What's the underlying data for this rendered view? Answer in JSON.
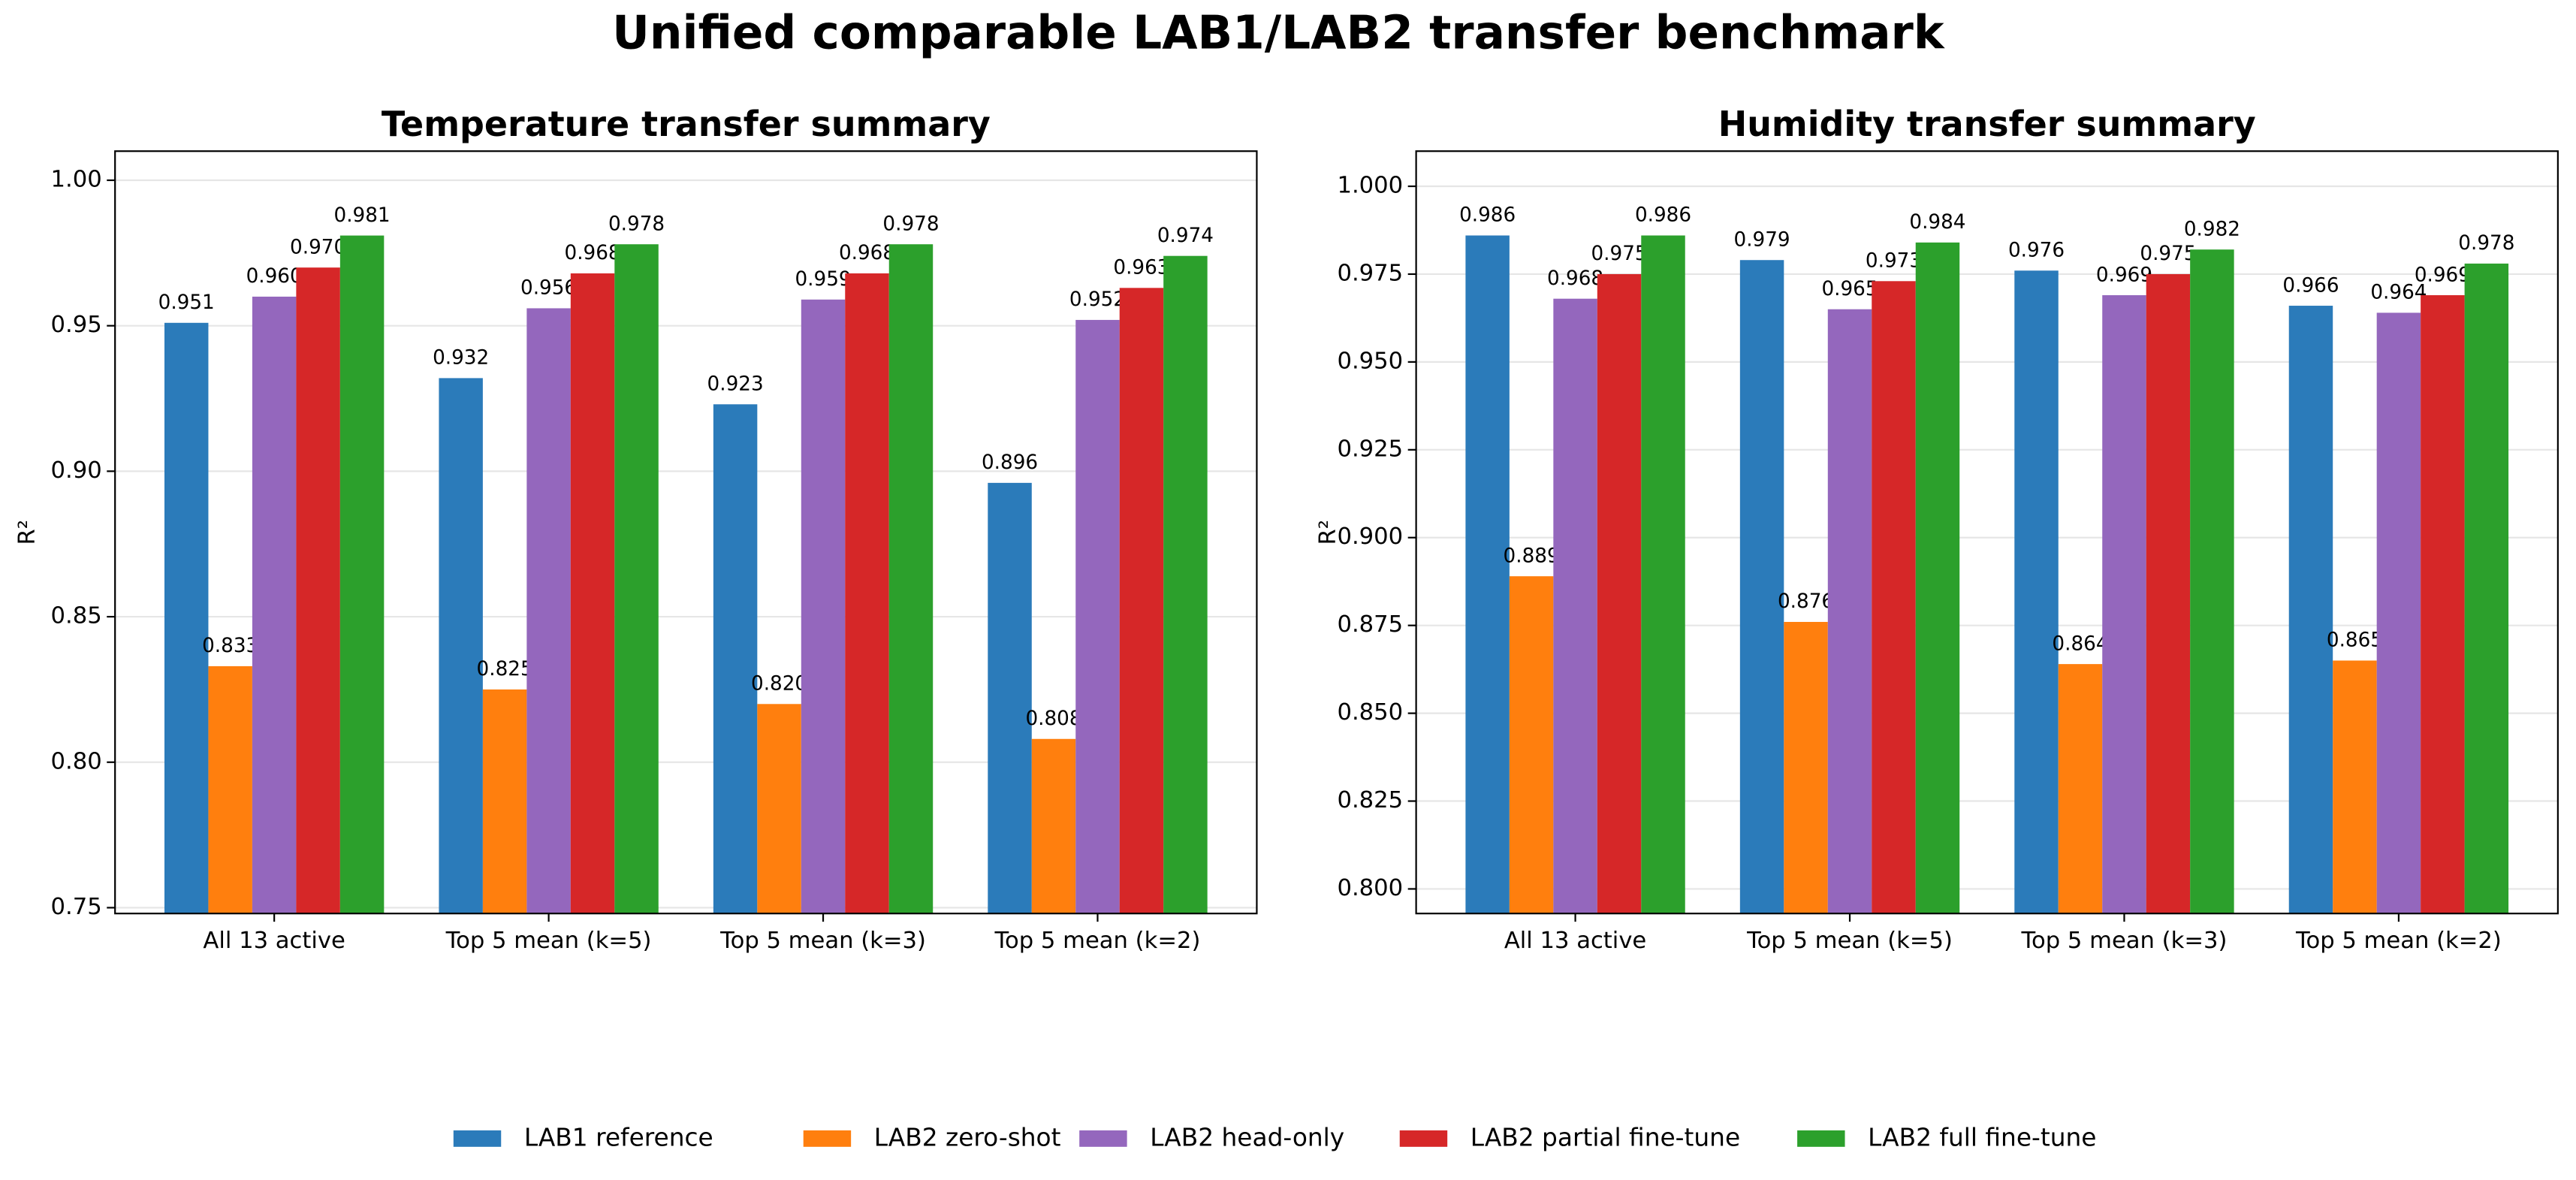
{
  "title": "Unified comparable LAB1/LAB2 transfer benchmark",
  "legend": "lower center",
  "chart_data": [
    {
      "type": "bar",
      "title": "Temperature transfer summary",
      "ylabel": "R²",
      "categories": [
        "All 13 active",
        "Top 5 mean (k=5)",
        "Top 5 mean (k=3)",
        "Top 5 mean (k=2)"
      ],
      "ylim": [
        0.748,
        1.01
      ],
      "yticks": [
        {
          "value": 0.75,
          "label": "0.75"
        },
        {
          "value": 0.8,
          "label": "0.80"
        },
        {
          "value": 0.85,
          "label": "0.85"
        },
        {
          "value": 0.9,
          "label": "0.90"
        },
        {
          "value": 0.95,
          "label": "0.95"
        },
        {
          "value": 1.0,
          "label": "1.00"
        }
      ],
      "grid": true,
      "series": [
        {
          "name": "LAB1 reference",
          "color": "#2b7bba",
          "values": [
            0.951,
            0.932,
            0.923,
            0.896
          ],
          "value_labels": [
            "0.951",
            "0.932",
            "0.923",
            "0.896"
          ]
        },
        {
          "name": "LAB2 zero-shot",
          "color": "#ff7f0e",
          "values": [
            0.833,
            0.825,
            0.82,
            0.808
          ],
          "value_labels": [
            "0.833",
            "0.825",
            "0.820",
            "0.808"
          ]
        },
        {
          "name": "LAB2 head-only",
          "color": "#9467bd",
          "values": [
            0.96,
            0.956,
            0.959,
            0.952
          ],
          "value_labels": [
            "0.960",
            "0.956",
            "0.959",
            "0.952"
          ]
        },
        {
          "name": "LAB2 partial fine-tune",
          "color": "#d62728",
          "values": [
            0.97,
            0.968,
            0.968,
            0.963
          ],
          "value_labels": [
            "0.970",
            "0.968",
            "0.968",
            "0.963"
          ]
        },
        {
          "name": "LAB2 full fine-tune",
          "color": "#2ca02c",
          "values": [
            0.981,
            0.978,
            0.978,
            0.974
          ],
          "value_labels": [
            "0.981",
            "0.978",
            "0.978",
            "0.974"
          ]
        }
      ]
    },
    {
      "type": "bar",
      "title": "Humidity transfer summary",
      "ylabel": "R²",
      "categories": [
        "All 13 active",
        "Top 5 mean (k=5)",
        "Top 5 mean (k=3)",
        "Top 5 mean (k=2)"
      ],
      "ylim": [
        0.793,
        1.01
      ],
      "yticks": [
        {
          "value": 0.8,
          "label": "0.800"
        },
        {
          "value": 0.825,
          "label": "0.825"
        },
        {
          "value": 0.85,
          "label": "0.850"
        },
        {
          "value": 0.875,
          "label": "0.875"
        },
        {
          "value": 0.9,
          "label": "0.900"
        },
        {
          "value": 0.925,
          "label": "0.925"
        },
        {
          "value": 0.95,
          "label": "0.950"
        },
        {
          "value": 0.975,
          "label": "0.975"
        },
        {
          "value": 1.0,
          "label": "1.000"
        }
      ],
      "grid": true,
      "series": [
        {
          "color": "#2b7bba",
          "values": [
            0.986,
            0.979,
            0.976,
            0.966
          ],
          "value_labels": [
            "0.986",
            "0.979",
            "0.976",
            "0.966"
          ]
        },
        {
          "color": "#ff7f0e",
          "values": [
            0.889,
            0.876,
            0.864,
            0.865
          ],
          "value_labels": [
            "0.889",
            "0.876",
            "0.864",
            "0.865"
          ]
        },
        {
          "color": "#9467bd",
          "values": [
            0.968,
            0.965,
            0.969,
            0.964
          ],
          "value_labels": [
            "0.968",
            "0.965",
            "0.969",
            "0.964"
          ]
        },
        {
          "color": "#d62728",
          "values": [
            0.975,
            0.973,
            0.975,
            0.969
          ],
          "value_labels": [
            "0.975",
            "0.973",
            "0.975",
            "0.969"
          ]
        },
        {
          "color": "#2ca02c",
          "values": [
            0.986,
            0.984,
            0.982,
            0.978
          ],
          "value_labels": [
            "0.986",
            "0.984",
            "0.982",
            "0.978"
          ]
        }
      ]
    }
  ]
}
